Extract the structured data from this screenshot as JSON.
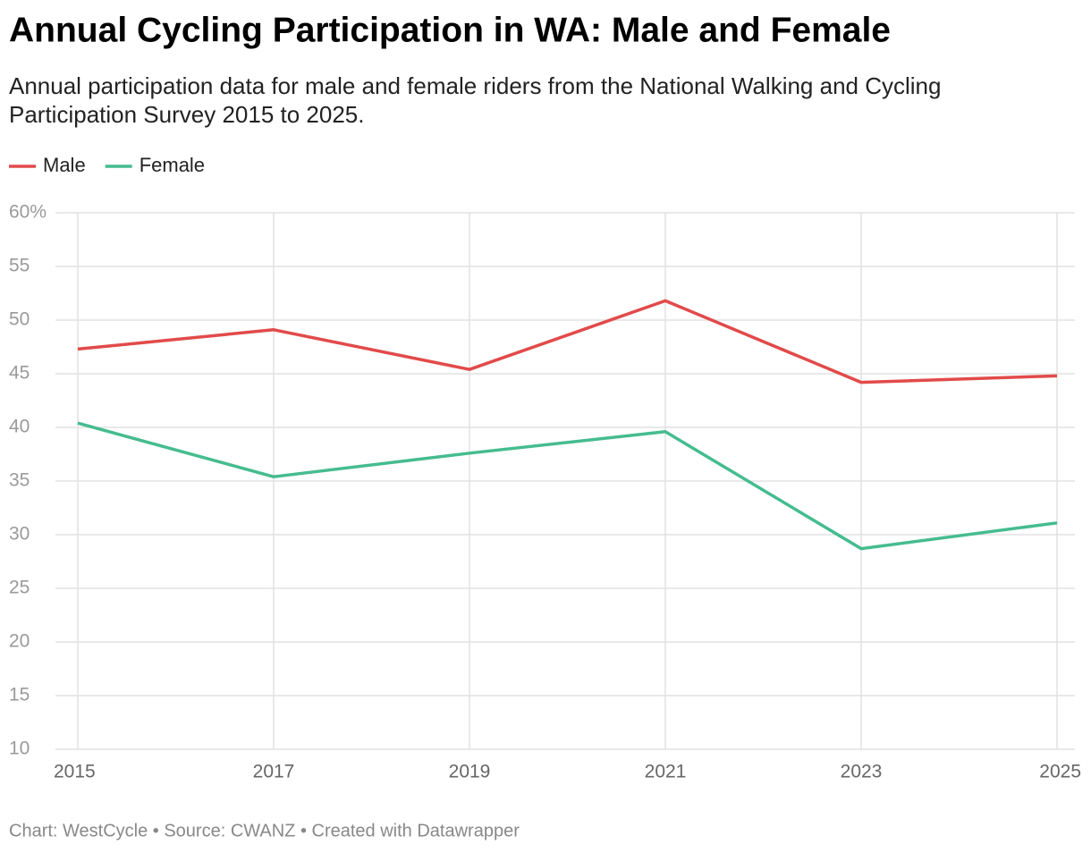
{
  "chart_data": {
    "type": "line",
    "title": "Annual Cycling Participation in WA: Male and Female",
    "subtitle": [
      "Annual participation data for male and female riders from the National Walking and Cycling",
      "Participation Survey 2015 to 2025."
    ],
    "x": [
      2015,
      2017,
      2019,
      2021,
      2023,
      2025
    ],
    "series": [
      {
        "name": "Male",
        "color": "#e24a4a",
        "values": [
          47.3,
          49.1,
          45.4,
          51.8,
          44.2,
          44.8
        ]
      },
      {
        "name": "Female",
        "color": "#45bc8f",
        "values": [
          40.4,
          35.4,
          37.6,
          39.6,
          28.7,
          31.1
        ]
      }
    ],
    "xlim": [
      2015,
      2025
    ],
    "xticks": [
      2015,
      2017,
      2019,
      2021,
      2023,
      2025
    ],
    "ylim": [
      10,
      60
    ],
    "yticks": [
      10,
      15,
      20,
      25,
      30,
      35,
      40,
      45,
      50,
      55,
      {
        "value": 60,
        "label": "60%"
      }
    ],
    "grid": true,
    "legend": "top-left",
    "footer": "Chart: WestCycle • Source: CWANZ • Created with Datawrapper"
  }
}
